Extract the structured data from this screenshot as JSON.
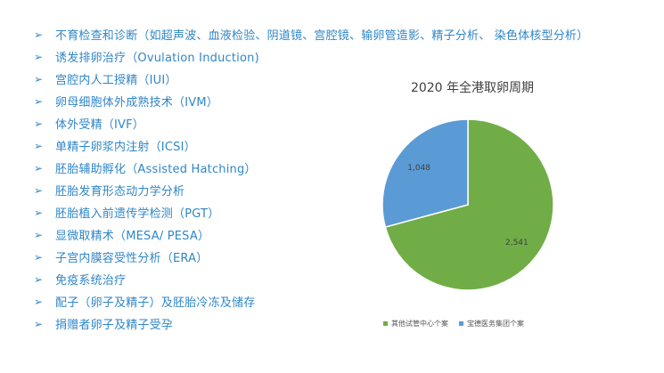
{
  "services": {
    "bullet": "➢",
    "items": [
      "不育检查和诊断（如超声波、血液检验、阴道镜、宫腔镜、输卵管造影、精子分析、 染色体核型分析）",
      "诱发排卵治疗（Ovulation Induction)",
      "宫腔内人工授精（IUI）",
      "卵母细胞体外成熟技术（IVM）",
      "体外受精（IVF）",
      "单精子卵浆内注射（ICSI）",
      "胚胎辅助孵化（Assisted Hatching）",
      "胚胎发育形态动力学分析",
      "胚胎植入前遗传学检测（PGT）",
      "显微取精术（MESA/ PESA）",
      "子宫内膜容受性分析（ERA）",
      "免疫系统治疗",
      "配子（卵子及精子）及胚胎冷冻及储存",
      "捐赠者卵子及精子受孕"
    ]
  },
  "chart_data": {
    "type": "pie",
    "title": "2020 年全港取卵周期",
    "slices": [
      {
        "name": "其他试管中心个案",
        "value": 2541,
        "label": "2,541",
        "color": "#70ad47"
      },
      {
        "name": "宝德医务集团个案",
        "value": 1048,
        "label": "1,048",
        "color": "#5b9bd5"
      }
    ],
    "legend_position": "bottom"
  }
}
